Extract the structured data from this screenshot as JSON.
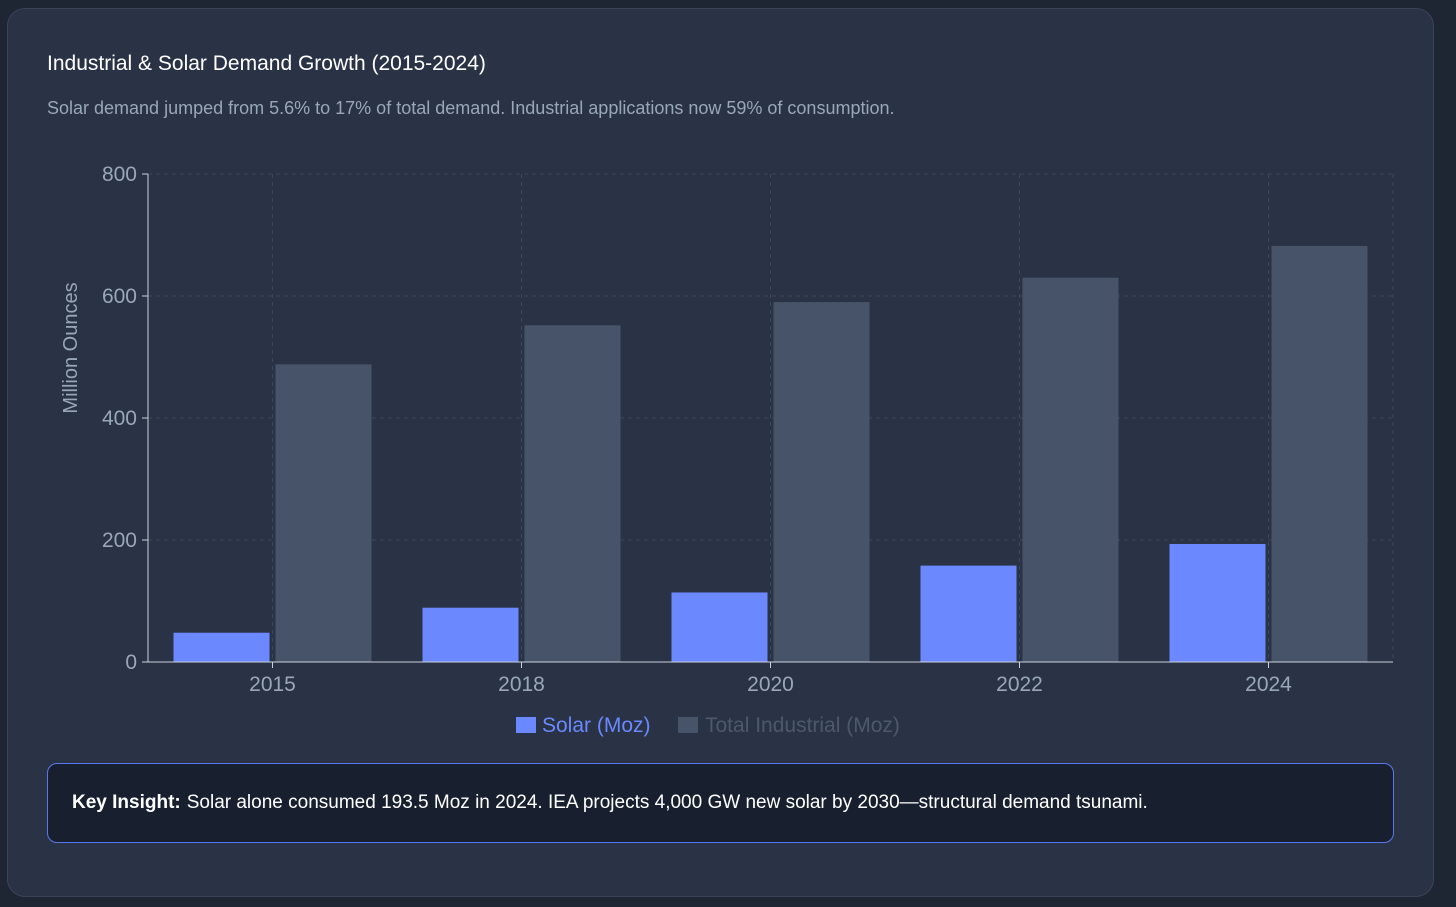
{
  "header": {
    "title": "Industrial & Solar Demand Growth (2015-2024)",
    "subtitle": "Solar demand jumped from 5.6% to 17% of total demand. Industrial applications now 59% of consumption."
  },
  "chart_data": {
    "type": "bar",
    "title": "Industrial & Solar Demand Growth (2015-2024)",
    "xlabel": "",
    "ylabel": "Million Ounces",
    "ylim": [
      0,
      800
    ],
    "yticks": [
      0,
      200,
      400,
      600,
      800
    ],
    "grid": true,
    "legend_position": "bottom-center",
    "categories": [
      "2015",
      "2018",
      "2020",
      "2022",
      "2024"
    ],
    "series": [
      {
        "name": "Solar (Moz)",
        "values": [
          48,
          89,
          114,
          158,
          193.5
        ],
        "color": "#6b88fe"
      },
      {
        "name": "Total Industrial (Moz)",
        "values": [
          488,
          552,
          590,
          630,
          682
        ],
        "color": "#475368"
      }
    ]
  },
  "insight": {
    "label": "Key Insight:",
    "text": "Solar alone consumed 193.5 Moz in 2024. IEA projects 4,000 GW new solar by 2030—structural demand tsunami."
  },
  "colors": {
    "background": "#1e2533",
    "card": "#2a3346",
    "accent": "#5a78ee",
    "axis_text": "#9aa6ba",
    "grid": "#3e4759"
  }
}
